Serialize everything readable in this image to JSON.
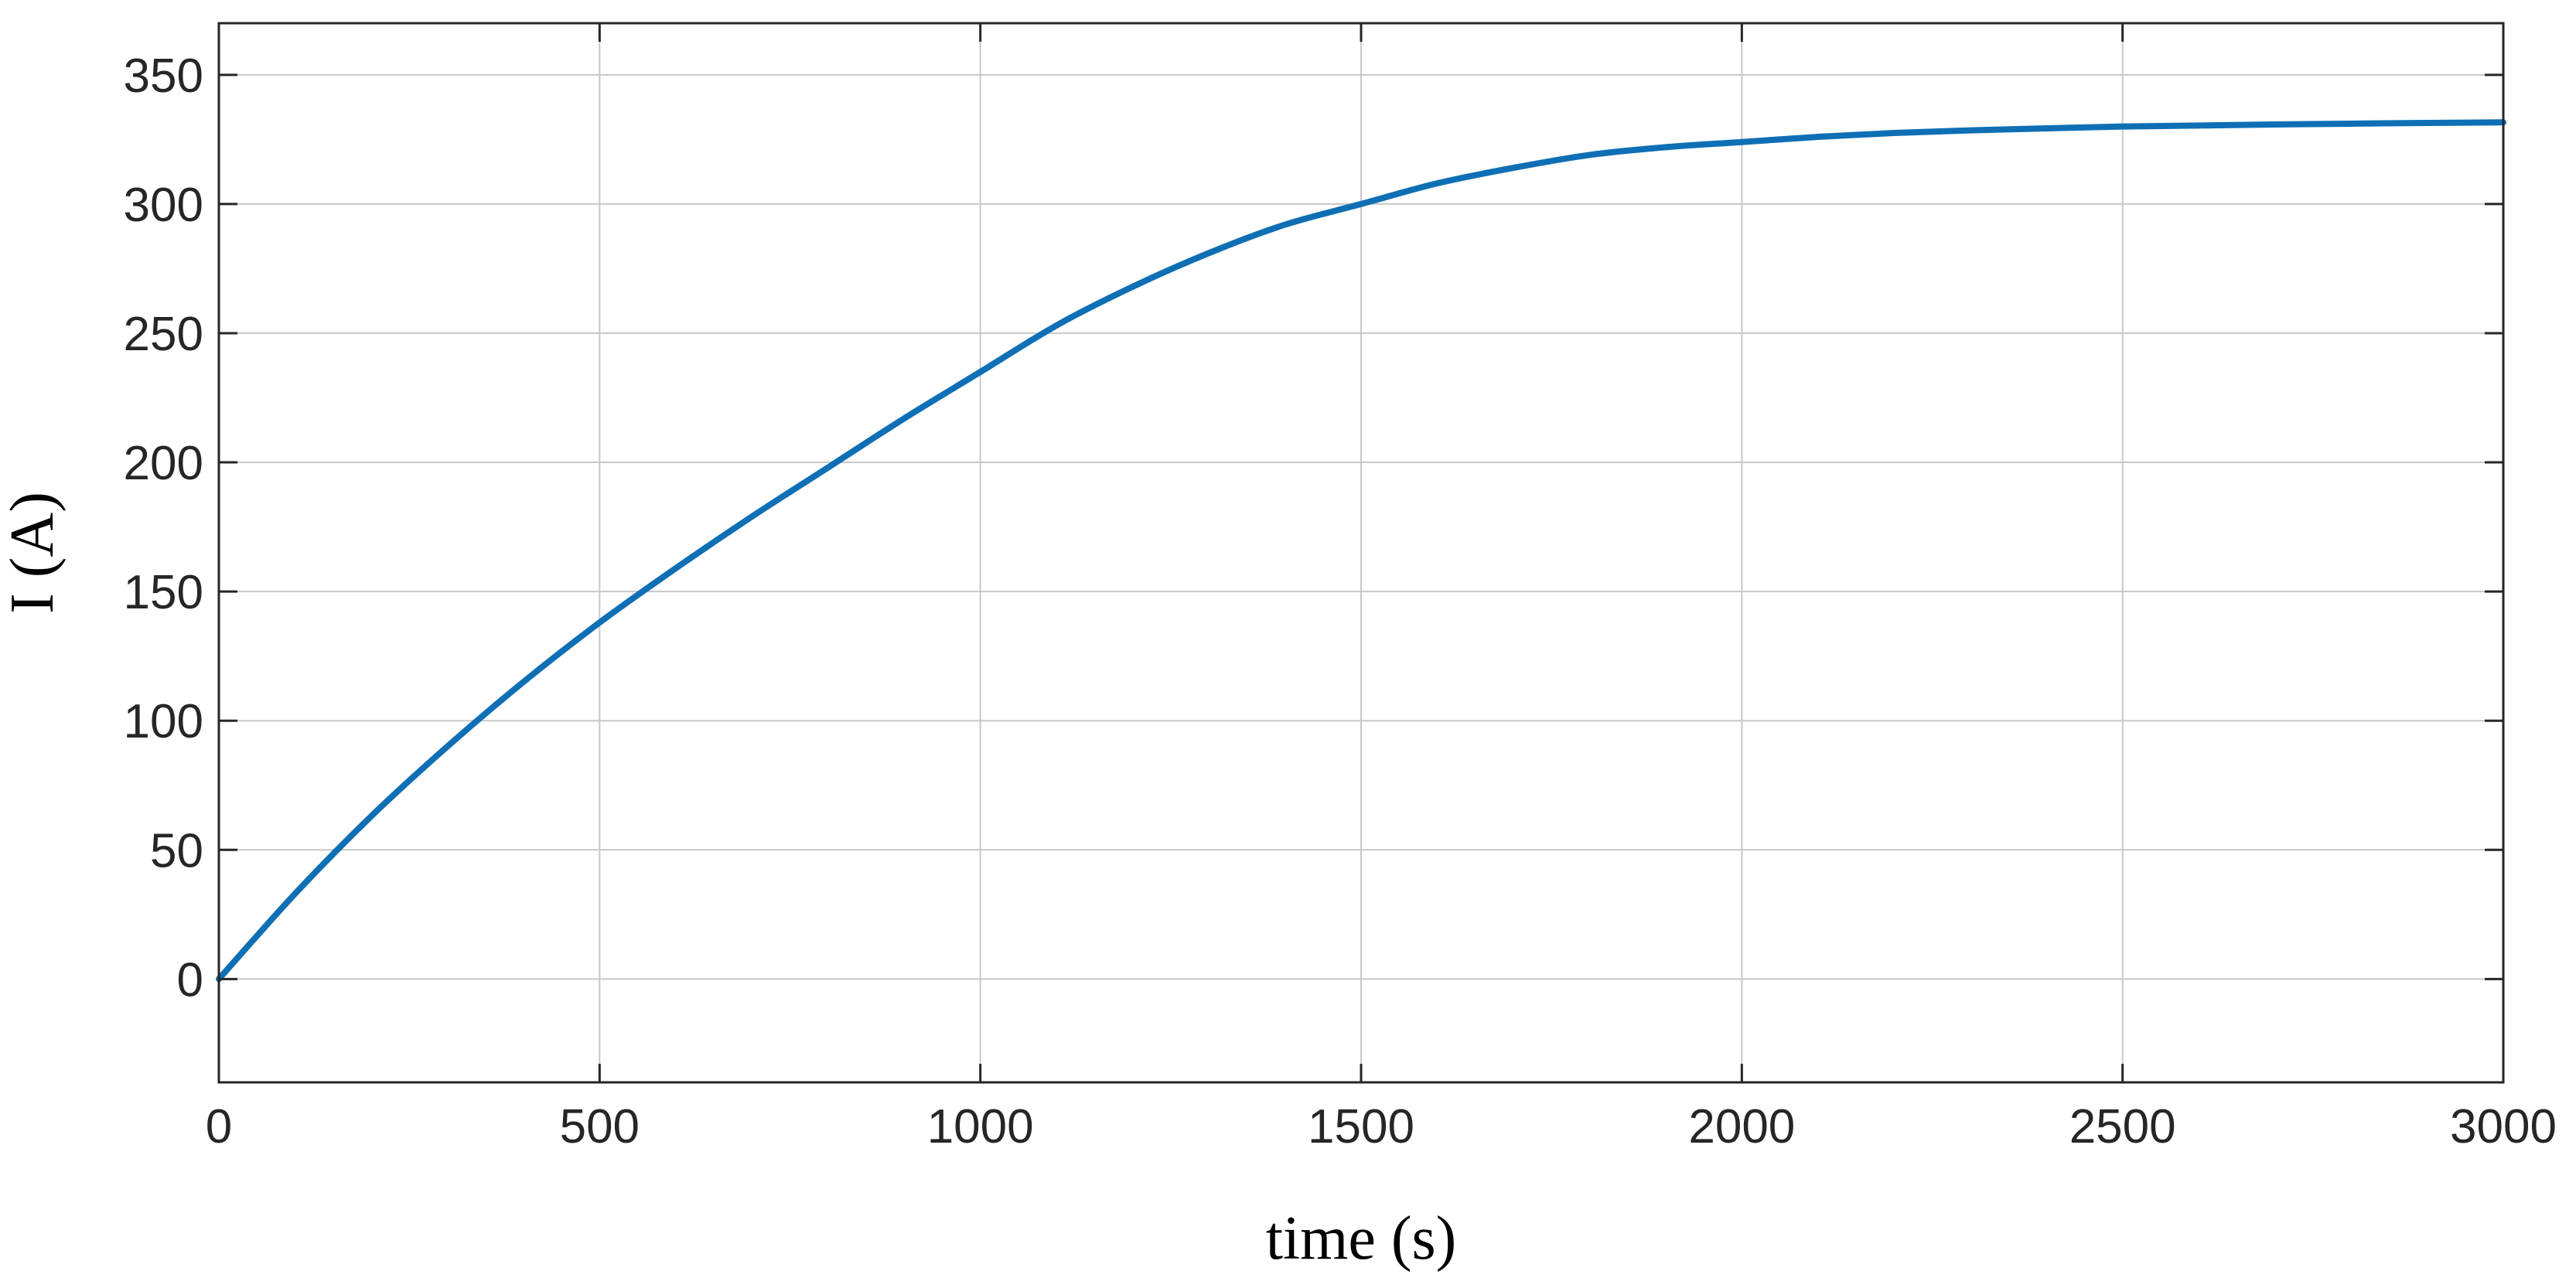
{
  "chart_data": {
    "type": "line",
    "title": "",
    "xlabel": "time (s)",
    "ylabel": "I (A)",
    "xlim": [
      0,
      3000
    ],
    "ylim": [
      -40,
      370
    ],
    "xticks": [
      0,
      500,
      1000,
      1500,
      2000,
      2500,
      3000
    ],
    "yticks": [
      0,
      50,
      100,
      150,
      200,
      250,
      300,
      350
    ],
    "xtick_labels": [
      "0",
      "500",
      "1000",
      "1500",
      "2000",
      "2500",
      "3000"
    ],
    "ytick_labels": [
      "0",
      "50",
      "100",
      "150",
      "200",
      "250",
      "300",
      "350"
    ],
    "grid": true,
    "legend": false,
    "series": [
      {
        "color": "#0f6fb5",
        "x": [
          0,
          100,
          200,
          300,
          400,
          500,
          600,
          700,
          800,
          900,
          1000,
          1100,
          1200,
          1300,
          1400,
          1500,
          1600,
          1700,
          1800,
          1900,
          2000,
          2100,
          2200,
          2300,
          2400,
          2500,
          2600,
          2700,
          2800,
          2900,
          3000
        ],
        "y": [
          0,
          33,
          63,
          90,
          115,
          138,
          159,
          179,
          198,
          217,
          235,
          253,
          268,
          281,
          292,
          300,
          308,
          314,
          319,
          322,
          324,
          326,
          327.5,
          328.5,
          329.3,
          330,
          330.4,
          330.8,
          331.1,
          331.4,
          331.6
        ]
      }
    ]
  }
}
